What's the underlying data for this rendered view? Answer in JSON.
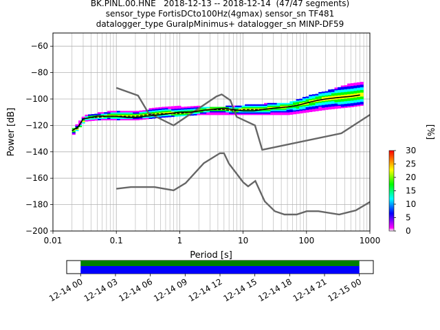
{
  "header": {
    "title_line1": "BK.PINL.00.HNE   2018-12-13 -- 2018-12-14  (47/47 segments)",
    "title_line2": "sensor_type FortisDCto100Hz(4gmax) sensor_sn TF481",
    "title_line3": "datalogger_type GuralpMinimus+ datalogger_sn MINP-DF59"
  },
  "chart_data": [
    {
      "type": "heatmap",
      "title": "BK.PINL.00.HNE   2018-12-13 -- 2018-12-14  (47/47 segments)",
      "xlabel": "Period [s]",
      "ylabel": "Power [dB]",
      "x_scale": "log",
      "xlim": [
        0.01,
        1000
      ],
      "ylim": [
        -200,
        -50
      ],
      "x_ticks": [
        "0.01",
        "0.1",
        "1",
        "10",
        "100",
        "1000"
      ],
      "y_ticks": [
        "−200",
        "−180",
        "−160",
        "−140",
        "−120",
        "−100",
        "−80",
        "−60"
      ],
      "grid": true,
      "colorbar": {
        "label": "[%]",
        "range": [
          0,
          30
        ],
        "ticks": [
          "0",
          "5",
          "10",
          "15",
          "20",
          "25",
          "30"
        ],
        "colors": [
          "#ff00ff",
          "#0000ff",
          "#00ffff",
          "#00ff00",
          "#ffff00",
          "#ff8000",
          "#ff0000"
        ]
      },
      "mode_curve": {
        "x": [
          0.02,
          0.025,
          0.03,
          0.04,
          0.05,
          0.07,
          0.1,
          0.15,
          0.2,
          0.3,
          0.5,
          0.7,
          1,
          1.5,
          2,
          3,
          5,
          7,
          10,
          15,
          20,
          30,
          50,
          70,
          100,
          150,
          200,
          300,
          500,
          700
        ],
        "y": [
          -124,
          -122,
          -115,
          -114,
          -114,
          -113,
          -113,
          -113,
          -113,
          -112,
          -111,
          -111,
          -111,
          -110,
          -109,
          -108,
          -108,
          -109,
          -108,
          -108,
          -108,
          -107,
          -106,
          -105,
          -103,
          -101,
          -100,
          -99,
          -98,
          -97
        ]
      },
      "mean_curve": {
        "x": [
          0.02,
          0.025,
          0.03,
          0.04,
          0.05,
          0.07,
          0.1,
          0.15,
          0.2,
          0.3,
          0.5,
          0.7,
          1,
          1.5,
          2,
          3,
          5,
          7,
          10,
          15,
          20,
          30,
          50,
          70,
          100,
          150,
          200,
          300,
          500,
          700
        ],
        "y": [
          -124,
          -121,
          -115,
          -114,
          -113,
          -113,
          -113,
          -114,
          -114,
          -113,
          -112,
          -111,
          -110,
          -110,
          -109,
          -108,
          -107,
          -108,
          -109,
          -109,
          -108,
          -107,
          -106,
          -105,
          -103,
          -101,
          -100,
          -99,
          -98,
          -97
        ]
      },
      "nhnm": {
        "x": [
          0.1,
          0.22,
          0.32,
          0.8,
          3.8,
          4.6,
          6.3,
          7.9,
          15.4,
          20,
          354.8,
          1000
        ],
        "y": [
          -91.5,
          -97.4,
          -110.5,
          -120,
          -98,
          -96.5,
          -101,
          -113.5,
          -120,
          -138.5,
          -126,
          -112
        ]
      },
      "nlnm": {
        "x": [
          0.1,
          0.17,
          0.4,
          0.8,
          1.24,
          2.4,
          4.3,
          5,
          6,
          10,
          12,
          15.6,
          21.9,
          31.6,
          45,
          70,
          101,
          154,
          328,
          600,
          1000
        ],
        "y": [
          -168,
          -166.7,
          -166.7,
          -169.2,
          -163.7,
          -148.6,
          -141.1,
          -141.1,
          -149,
          -163,
          -166.2,
          -162.1,
          -177.5,
          -185,
          -187.5,
          -187.5,
          -185,
          -185,
          -187.5,
          -184.4,
          -178
        ]
      },
      "spread": {
        "x": [
          0.02,
          0.03,
          0.05,
          0.1,
          0.2,
          0.5,
          1,
          2,
          5,
          10,
          20,
          50,
          100,
          200,
          500,
          700
        ],
        "y_hi": [
          -122,
          -113,
          -111,
          -109,
          -110,
          -106,
          -106,
          -106,
          -106,
          -105,
          -104,
          -103,
          -98,
          -94,
          -88,
          -87
        ],
        "y_lo": [
          -127,
          -117,
          -116,
          -116,
          -116,
          -114,
          -113,
          -112,
          -112,
          -112,
          -112,
          -112,
          -110,
          -108,
          -106,
          -105
        ]
      }
    },
    {
      "type": "bar",
      "xlabel": "",
      "xlim": [
        "12-14 00",
        "12-15 00"
      ],
      "x_ticks": [
        "12-14 00",
        "12-14 03",
        "12-14 06",
        "12-14 09",
        "12-14 12",
        "12-14 15",
        "12-14 18",
        "12-14 21",
        "12-15 00"
      ],
      "coverage_start_hour": 0,
      "coverage_end_hour": 24,
      "view_start_hour": -1.2,
      "view_end_hour": 25.2,
      "bands": [
        {
          "name": "",
          "color": "#008000"
        },
        {
          "name": "",
          "color": "#0000ff"
        }
      ]
    }
  ]
}
